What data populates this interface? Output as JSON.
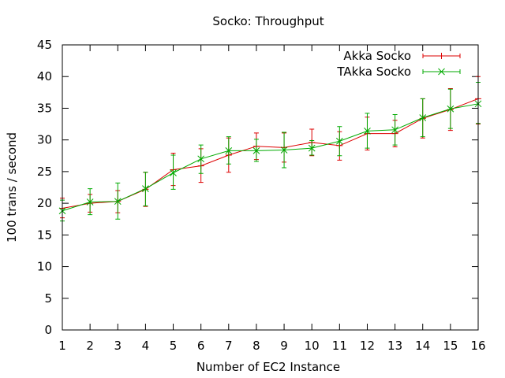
{
  "chart_data": {
    "type": "line",
    "title": "Socko: Throughput",
    "xlabel": "Number of EC2 Instance",
    "ylabel": "100 trans / second",
    "x": [
      1,
      2,
      3,
      4,
      5,
      6,
      7,
      8,
      9,
      10,
      11,
      12,
      13,
      14,
      15,
      16
    ],
    "xlim": [
      1,
      16
    ],
    "ylim": [
      0,
      45
    ],
    "xticks": [
      "1",
      "2",
      "3",
      "4",
      "5",
      "6",
      "7",
      "8",
      "9",
      "10",
      "11",
      "12",
      "13",
      "14",
      "15",
      "16"
    ],
    "yticks": [
      "0",
      "5",
      "10",
      "15",
      "20",
      "25",
      "30",
      "35",
      "40",
      "45"
    ],
    "grid": false,
    "legend_position": "top-right",
    "series": [
      {
        "name": "Akka Socko",
        "color": "#dd0000",
        "marker": "plus",
        "values": [
          19.2,
          20.0,
          20.3,
          22.2,
          25.3,
          25.9,
          27.6,
          29.0,
          28.8,
          29.6,
          29.1,
          31.0,
          31.0,
          33.4,
          34.8,
          36.5
        ],
        "err_low": [
          17.7,
          18.6,
          18.5,
          19.5,
          22.8,
          23.3,
          24.9,
          26.9,
          26.5,
          27.5,
          26.8,
          28.4,
          28.9,
          30.3,
          31.5,
          32.5
        ],
        "err_high": [
          20.8,
          21.4,
          22.0,
          24.9,
          27.9,
          28.6,
          30.3,
          31.1,
          31.1,
          31.7,
          31.3,
          33.6,
          33.1,
          36.5,
          38.1,
          40.0
        ]
      },
      {
        "name": "TAkka Socko",
        "color": "#00aa00",
        "marker": "cross",
        "values": [
          18.8,
          20.2,
          20.3,
          22.3,
          24.8,
          27.0,
          28.3,
          28.3,
          28.4,
          28.7,
          29.8,
          31.4,
          31.6,
          33.5,
          34.9,
          35.7
        ],
        "err_low": [
          17.2,
          18.2,
          17.5,
          19.6,
          22.2,
          24.7,
          26.2,
          26.6,
          25.6,
          27.6,
          27.5,
          28.7,
          29.2,
          30.5,
          31.8,
          32.6
        ],
        "err_high": [
          20.5,
          22.3,
          23.2,
          24.9,
          27.6,
          29.2,
          30.5,
          30.1,
          31.2,
          29.9,
          32.1,
          34.2,
          34.0,
          36.5,
          38.0,
          39.1
        ]
      }
    ]
  }
}
